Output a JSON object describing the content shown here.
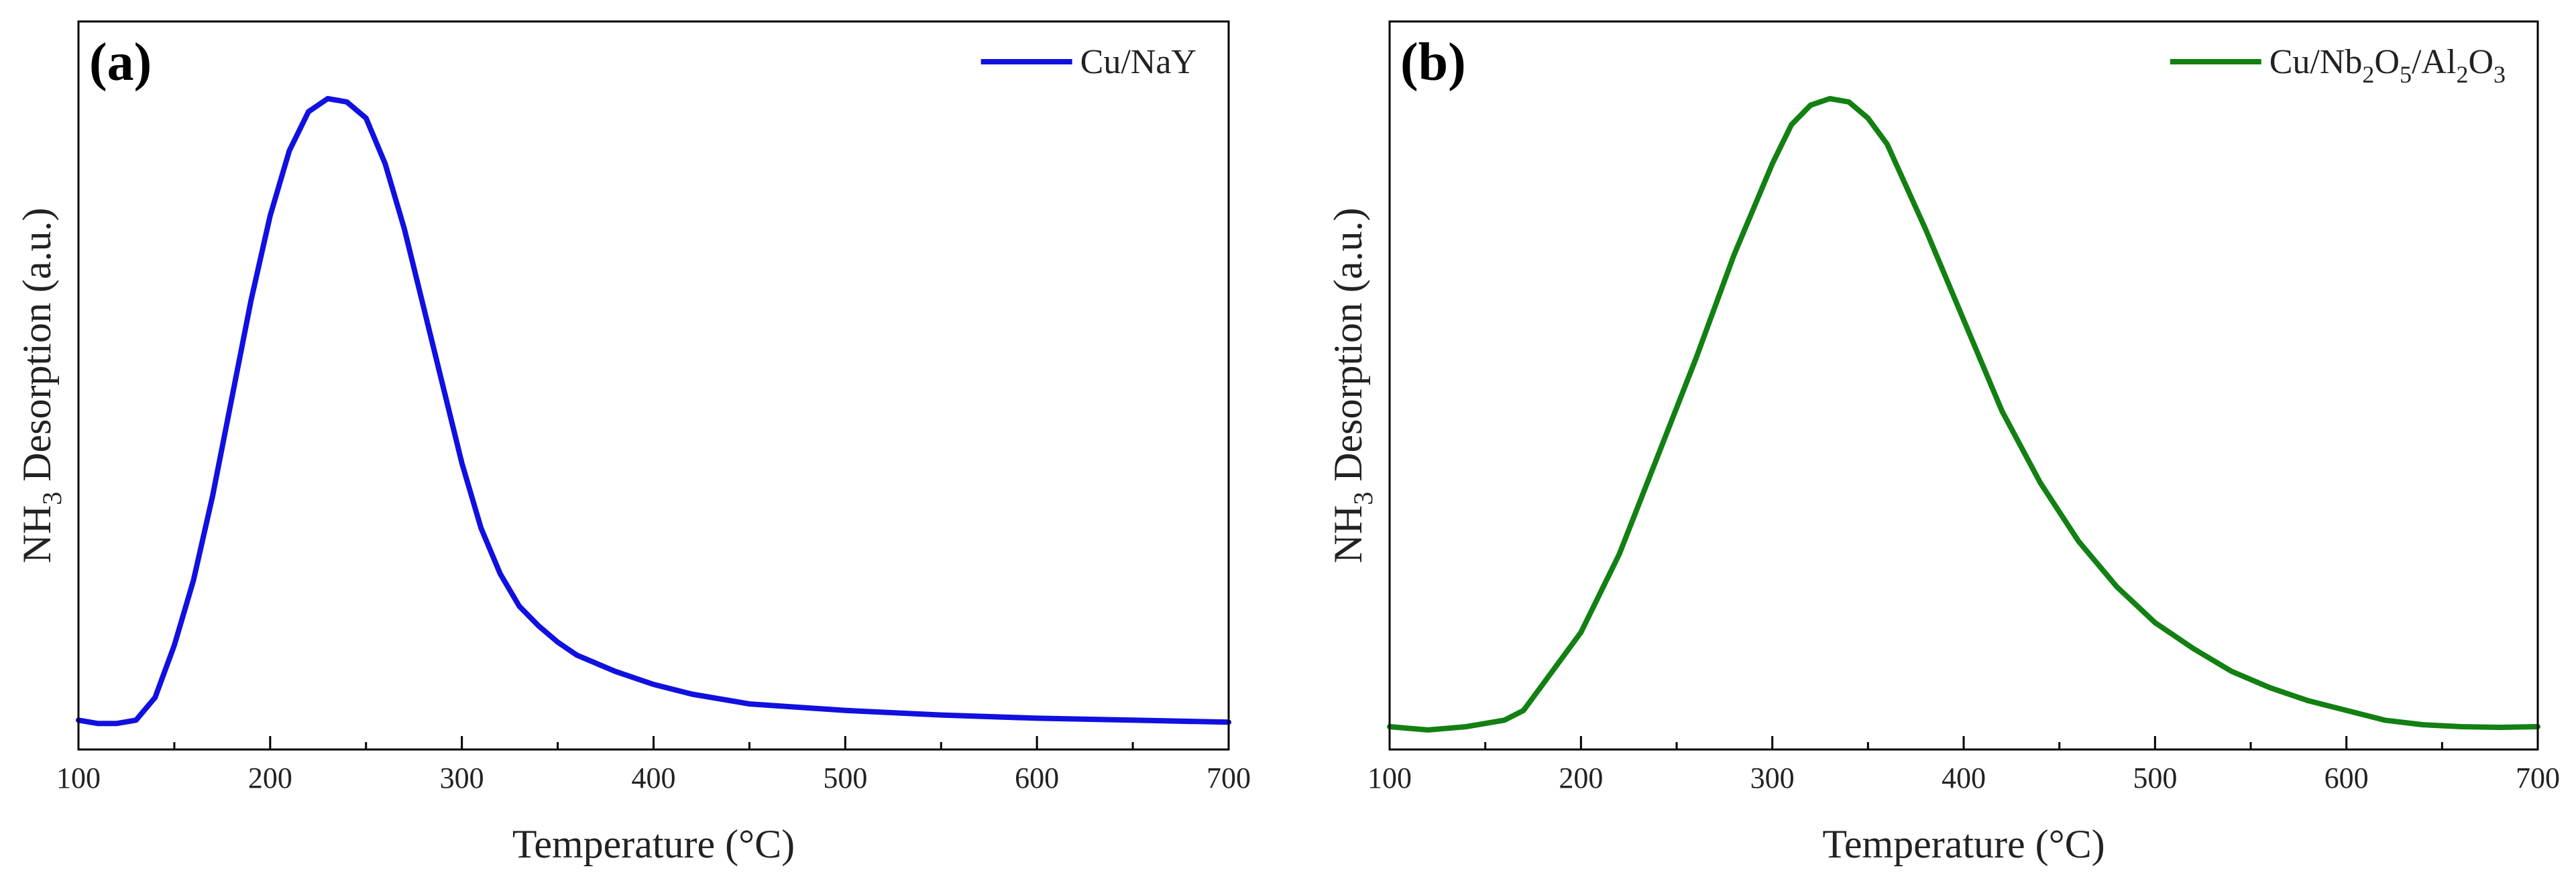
{
  "chart_data": [
    {
      "type": "line",
      "panel_label": "(a)",
      "title": "",
      "xlabel": "Temperature (°C)",
      "ylabel": {
        "prefix": "NH",
        "sub": "3",
        "suffix": " Desorption (a.u.)"
      },
      "xlim": [
        100,
        700
      ],
      "ylim": [
        0,
        1.0
      ],
      "xticks": [
        100,
        200,
        300,
        400,
        500,
        600,
        700
      ],
      "yticks_shown": false,
      "legend": {
        "position": "top-right"
      },
      "series": [
        {
          "name": "Cu/NaY",
          "legend_parts": [
            {
              "t": "Cu/NaY"
            }
          ],
          "color": "#1010e0",
          "x": [
            100,
            110,
            120,
            130,
            140,
            150,
            160,
            170,
            180,
            190,
            200,
            210,
            220,
            230,
            240,
            250,
            260,
            270,
            280,
            290,
            300,
            310,
            320,
            330,
            340,
            350,
            360,
            380,
            400,
            420,
            450,
            500,
            550,
            600,
            650,
            700
          ],
          "y": [
            0.045,
            0.04,
            0.04,
            0.045,
            0.08,
            0.16,
            0.26,
            0.39,
            0.54,
            0.69,
            0.82,
            0.92,
            0.98,
            1.0,
            0.995,
            0.97,
            0.9,
            0.8,
            0.68,
            0.56,
            0.44,
            0.34,
            0.27,
            0.22,
            0.19,
            0.165,
            0.145,
            0.12,
            0.1,
            0.085,
            0.07,
            0.06,
            0.053,
            0.048,
            0.045,
            0.042
          ]
        }
      ]
    },
    {
      "type": "line",
      "panel_label": "(b)",
      "title": "",
      "xlabel": "Temperature (°C)",
      "ylabel": {
        "prefix": "NH",
        "sub": "3",
        "suffix": " Desorption (a.u.)"
      },
      "xlim": [
        100,
        700
      ],
      "ylim": [
        0,
        1.0
      ],
      "xticks": [
        100,
        200,
        300,
        400,
        500,
        600,
        700
      ],
      "yticks_shown": false,
      "legend": {
        "position": "top-right"
      },
      "series": [
        {
          "name": "Cu/Nb2O5/Al2O3",
          "legend_parts": [
            {
              "t": "Cu/Nb"
            },
            {
              "t": "2",
              "sub": true
            },
            {
              "t": "O"
            },
            {
              "t": "5",
              "sub": true
            },
            {
              "t": "/Al"
            },
            {
              "t": "2",
              "sub": true
            },
            {
              "t": "O"
            },
            {
              "t": "3",
              "sub": true
            }
          ],
          "color": "#128012",
          "x": [
            100,
            120,
            140,
            160,
            170,
            180,
            200,
            220,
            240,
            260,
            280,
            300,
            310,
            320,
            330,
            340,
            350,
            360,
            380,
            400,
            420,
            440,
            460,
            480,
            500,
            520,
            540,
            560,
            580,
            600,
            620,
            640,
            660,
            680,
            700
          ],
          "y": [
            0.035,
            0.03,
            0.035,
            0.045,
            0.06,
            0.1,
            0.18,
            0.3,
            0.45,
            0.6,
            0.76,
            0.9,
            0.96,
            0.99,
            1.0,
            0.995,
            0.97,
            0.93,
            0.8,
            0.66,
            0.52,
            0.41,
            0.32,
            0.25,
            0.195,
            0.155,
            0.12,
            0.095,
            0.075,
            0.06,
            0.045,
            0.038,
            0.035,
            0.034,
            0.035
          ]
        }
      ]
    }
  ]
}
